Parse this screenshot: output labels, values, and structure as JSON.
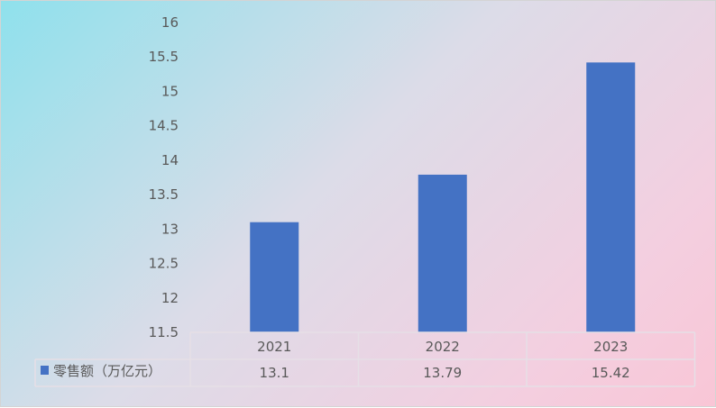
{
  "chart_data": {
    "type": "bar",
    "categories": [
      "2021",
      "2022",
      "2023"
    ],
    "series": [
      {
        "name": "零售额（万亿元）",
        "values": [
          13.1,
          13.79,
          15.42
        ],
        "value_labels": [
          "13.1",
          "13.79",
          "15.42"
        ]
      }
    ],
    "ylim": [
      11.5,
      16
    ],
    "yticks": [
      "11.5",
      "12",
      "12.5",
      "13",
      "13.5",
      "14",
      "14.5",
      "15",
      "15.5",
      "16"
    ],
    "grid": false,
    "legend_placement": "data-table-row-header",
    "bar_color": "#4472c4"
  }
}
